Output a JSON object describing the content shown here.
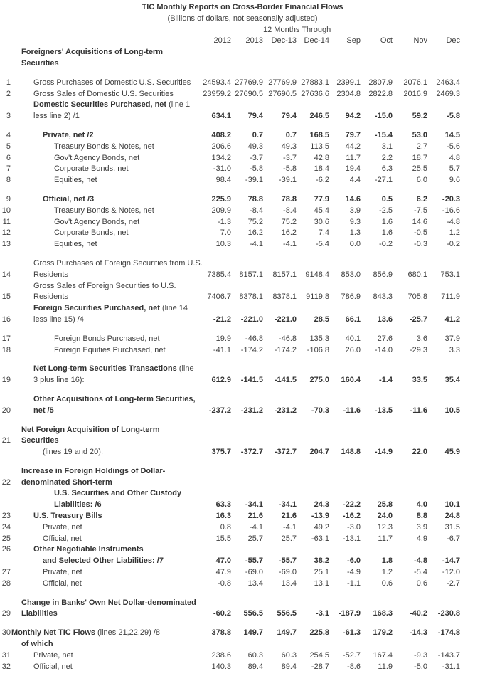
{
  "table": {
    "title": "TIC Monthly Reports on Cross-Border Financial Flows",
    "subtitle": "(Billions of dollars, not seasonally adjusted)",
    "period_header": "12 Months Through",
    "columns": [
      "2012",
      "2013",
      "Dec-13",
      "Dec-14",
      "Sep",
      "Oct",
      "Nov",
      "Dec"
    ],
    "lines": [
      {
        "b": "Foreigners' Acquisitions of Long-term",
        "ind": 1
      },
      {
        "b": "Securities",
        "ind": 1
      },
      {
        "blank": true
      },
      {
        "num": "1",
        "r": "Gross Purchases of Domestic U.S. Securities",
        "ind": 2,
        "v": [
          "24593.4",
          "27769.9",
          "27769.9",
          "27883.1",
          "2399.1",
          "2807.9",
          "2076.1",
          "2463.4"
        ]
      },
      {
        "num": "2",
        "r": "Gross Sales of Domestic U.S. Securities",
        "ind": 2,
        "v": [
          "23959.2",
          "27690.5",
          "27690.5",
          "27636.6",
          "2304.8",
          "2822.8",
          "2016.9",
          "2469.3"
        ]
      },
      {
        "b": "Domestic Securities Purchased, net ",
        "r": "(line 1",
        "ind": 2
      },
      {
        "num": "3",
        "r": "less line 2) /1",
        "ind": 2,
        "v": [
          "634.1",
          "79.4",
          "79.4",
          "246.5",
          "94.2",
          "-15.0",
          "59.2",
          "-5.8"
        ],
        "vb": true
      },
      {
        "blank": true
      },
      {
        "num": "4",
        "b": "Private, net /2",
        "ind": 3,
        "v": [
          "408.2",
          "0.7",
          "0.7",
          "168.5",
          "79.7",
          "-15.4",
          "53.0",
          "14.5"
        ],
        "vb": true
      },
      {
        "num": "5",
        "r": "Treasury Bonds & Notes, net",
        "ind": 4,
        "v": [
          "206.6",
          "49.3",
          "49.3",
          "113.5",
          "44.2",
          "3.1",
          "2.7",
          "-5.6"
        ]
      },
      {
        "num": "6",
        "r": "Gov't Agency Bonds, net",
        "ind": 4,
        "v": [
          "134.2",
          "-3.7",
          "-3.7",
          "42.8",
          "11.7",
          "2.2",
          "18.7",
          "4.8"
        ]
      },
      {
        "num": "7",
        "r": "Corporate Bonds, net",
        "ind": 4,
        "v": [
          "-31.0",
          "-5.8",
          "-5.8",
          "18.4",
          "19.4",
          "6.3",
          "25.5",
          "5.7"
        ]
      },
      {
        "num": "8",
        "r": "Equities, net",
        "ind": 4,
        "v": [
          "98.4",
          "-39.1",
          "-39.1",
          "-6.2",
          "4.4",
          "-27.1",
          "6.0",
          "9.6"
        ]
      },
      {
        "blank": true
      },
      {
        "num": "9",
        "b": "Official, net /3",
        "ind": 3,
        "v": [
          "225.9",
          "78.8",
          "78.8",
          "77.9",
          "14.6",
          "0.5",
          "6.2",
          "-20.3"
        ],
        "vb": true
      },
      {
        "num": "10",
        "r": "Treasury Bonds & Notes, net",
        "ind": 4,
        "v": [
          "209.9",
          "-8.4",
          "-8.4",
          "45.4",
          "3.9",
          "-2.5",
          "-7.5",
          "-16.6"
        ]
      },
      {
        "num": "11",
        "r": "Gov't Agency Bonds, net",
        "ind": 4,
        "v": [
          "-1.3",
          "75.2",
          "75.2",
          "30.6",
          "9.3",
          "1.6",
          "14.6",
          "-4.8"
        ]
      },
      {
        "num": "12",
        "r": "Corporate Bonds, net",
        "ind": 4,
        "v": [
          "7.0",
          "16.2",
          "16.2",
          "7.4",
          "1.3",
          "1.6",
          "-0.5",
          "1.2"
        ]
      },
      {
        "num": "13",
        "r": "Equities, net",
        "ind": 4,
        "v": [
          "10.3",
          "-4.1",
          "-4.1",
          "-5.4",
          "0.0",
          "-0.2",
          "-0.3",
          "-0.2"
        ]
      },
      {
        "blank": true
      },
      {
        "r": "Gross Purchases of Foreign Securities from U.S.",
        "ind": 2
      },
      {
        "num": "14",
        "r": "Residents",
        "ind": 2,
        "v": [
          "7385.4",
          "8157.1",
          "8157.1",
          "9148.4",
          "853.0",
          "856.9",
          "680.1",
          "753.1"
        ]
      },
      {
        "r": "Gross Sales of Foreign Securities to U.S.",
        "ind": 2
      },
      {
        "num": "15",
        "r": "Residents",
        "ind": 2,
        "v": [
          "7406.7",
          "8378.1",
          "8378.1",
          "9119.8",
          "786.9",
          "843.3",
          "705.8",
          "711.9"
        ]
      },
      {
        "b": "Foreign Securities Purchased, net ",
        "r": "(line 14",
        "ind": 2
      },
      {
        "num": "16",
        "r": "less line 15) /4",
        "ind": 2,
        "v": [
          "-21.2",
          "-221.0",
          "-221.0",
          "28.5",
          "66.1",
          "13.6",
          "-25.7",
          "41.2"
        ],
        "vb": true
      },
      {
        "blank": true
      },
      {
        "num": "17",
        "r": "Foreign Bonds Purchased, net",
        "ind": 4,
        "v": [
          "19.9",
          "-46.8",
          "-46.8",
          "135.3",
          "40.1",
          "27.6",
          "3.6",
          "37.9"
        ]
      },
      {
        "num": "18",
        "r": "Foreign Equities Purchased, net",
        "ind": 4,
        "v": [
          "-41.1",
          "-174.2",
          "-174.2",
          "-106.8",
          "26.0",
          "-14.0",
          "-29.3",
          "3.3"
        ]
      },
      {
        "blank": true
      },
      {
        "b": "Net Long-term Securities Transactions ",
        "r": "(line",
        "ind": 2
      },
      {
        "num": "19",
        "r": "3 plus line 16):",
        "ind": 2,
        "v": [
          "612.9",
          "-141.5",
          "-141.5",
          "275.0",
          "160.4",
          "-1.4",
          "33.5",
          "35.4"
        ],
        "vb": true
      },
      {
        "blank": true
      },
      {
        "b": "Other Acquisitions of Long-term Securities,",
        "ind": 2
      },
      {
        "num": "20",
        "b": "net /5",
        "ind": 2,
        "v": [
          "-237.2",
          "-231.2",
          "-231.2",
          "-70.3",
          "-11.6",
          "-13.5",
          "-11.6",
          "10.5"
        ],
        "vb": true
      },
      {
        "blank": true
      },
      {
        "b": "Net Foreign Acquisition of Long-term",
        "ind": 1
      },
      {
        "num": "21",
        "b": "Securities",
        "ind": 1
      },
      {
        "r": "(lines 19 and 20):",
        "ind": 3,
        "v": [
          "375.7",
          "-372.7",
          "-372.7",
          "204.7",
          "148.8",
          "-14.9",
          "22.0",
          "45.9"
        ],
        "vb": true
      },
      {
        "blank": true
      },
      {
        "b": "Increase in Foreign Holdings of Dollar-",
        "ind": 1
      },
      {
        "num": "22",
        "b": "denominated Short-term",
        "ind": 1
      },
      {
        "b": "U.S. Securities and Other Custody",
        "ind": 4
      },
      {
        "b": "Liabilities: /6",
        "ind": 4,
        "v": [
          "63.3",
          "-34.1",
          "-34.1",
          "24.3",
          "-22.2",
          "25.8",
          "4.0",
          "10.1"
        ],
        "vb": true
      },
      {
        "num": "23",
        "b": "U.S. Treasury Bills",
        "ind": 2,
        "v": [
          "16.3",
          "21.6",
          "21.6",
          "-13.9",
          "-16.2",
          "24.0",
          "8.8",
          "24.8"
        ],
        "vb": true
      },
      {
        "num": "24",
        "r": "Private, net",
        "ind": 3,
        "v": [
          "0.8",
          "-4.1",
          "-4.1",
          "49.2",
          "-3.0",
          "12.3",
          "3.9",
          "31.5"
        ]
      },
      {
        "num": "25",
        "r": "Official, net",
        "ind": 3,
        "v": [
          "15.5",
          "25.7",
          "25.7",
          "-63.1",
          "-13.1",
          "11.7",
          "4.9",
          "-6.7"
        ]
      },
      {
        "num": "26",
        "b": "Other Negotiable Instruments",
        "ind": 2
      },
      {
        "b": "and Selected Other Liabilities: /7",
        "ind": 3,
        "v": [
          "47.0",
          "-55.7",
          "-55.7",
          "38.2",
          "-6.0",
          "1.8",
          "-4.8",
          "-14.7"
        ],
        "vb": true
      },
      {
        "num": "27",
        "r": "Private, net",
        "ind": 3,
        "v": [
          "47.9",
          "-69.0",
          "-69.0",
          "25.1",
          "-4.9",
          "1.2",
          "-5.4",
          "-12.0"
        ]
      },
      {
        "num": "28",
        "r": "Official, net",
        "ind": 3,
        "v": [
          "-0.8",
          "13.4",
          "13.4",
          "13.1",
          "-1.1",
          "0.6",
          "0.6",
          "-2.7"
        ]
      },
      {
        "blank": true
      },
      {
        "b": "Change in Banks' Own Net Dollar-denominated",
        "ind": 1
      },
      {
        "num": "29",
        "b": "Liabilities",
        "ind": 1,
        "v": [
          "-60.2",
          "556.5",
          "556.5",
          "-3.1",
          "-187.9",
          "168.3",
          "-40.2",
          "-230.8"
        ],
        "vb": true
      },
      {
        "blank": true
      },
      {
        "num": "30",
        "b": "Monthly Net TIC Flows ",
        "r": "(lines 21,22,29) /8",
        "ind": 0,
        "v": [
          "378.8",
          "149.7",
          "149.7",
          "225.8",
          "-61.3",
          "179.2",
          "-14.3",
          "-174.8"
        ],
        "vb": true
      },
      {
        "b": "of which",
        "ind": 1
      },
      {
        "num": "31",
        "r": "Private, net",
        "ind": 2,
        "v": [
          "238.6",
          "60.3",
          "60.3",
          "254.5",
          "-52.7",
          "167.4",
          "-9.3",
          "-143.7"
        ]
      },
      {
        "num": "32",
        "r": "Official, net",
        "ind": 2,
        "v": [
          "140.3",
          "89.4",
          "89.4",
          "-28.7",
          "-8.6",
          "11.9",
          "-5.0",
          "-31.1"
        ]
      }
    ]
  }
}
